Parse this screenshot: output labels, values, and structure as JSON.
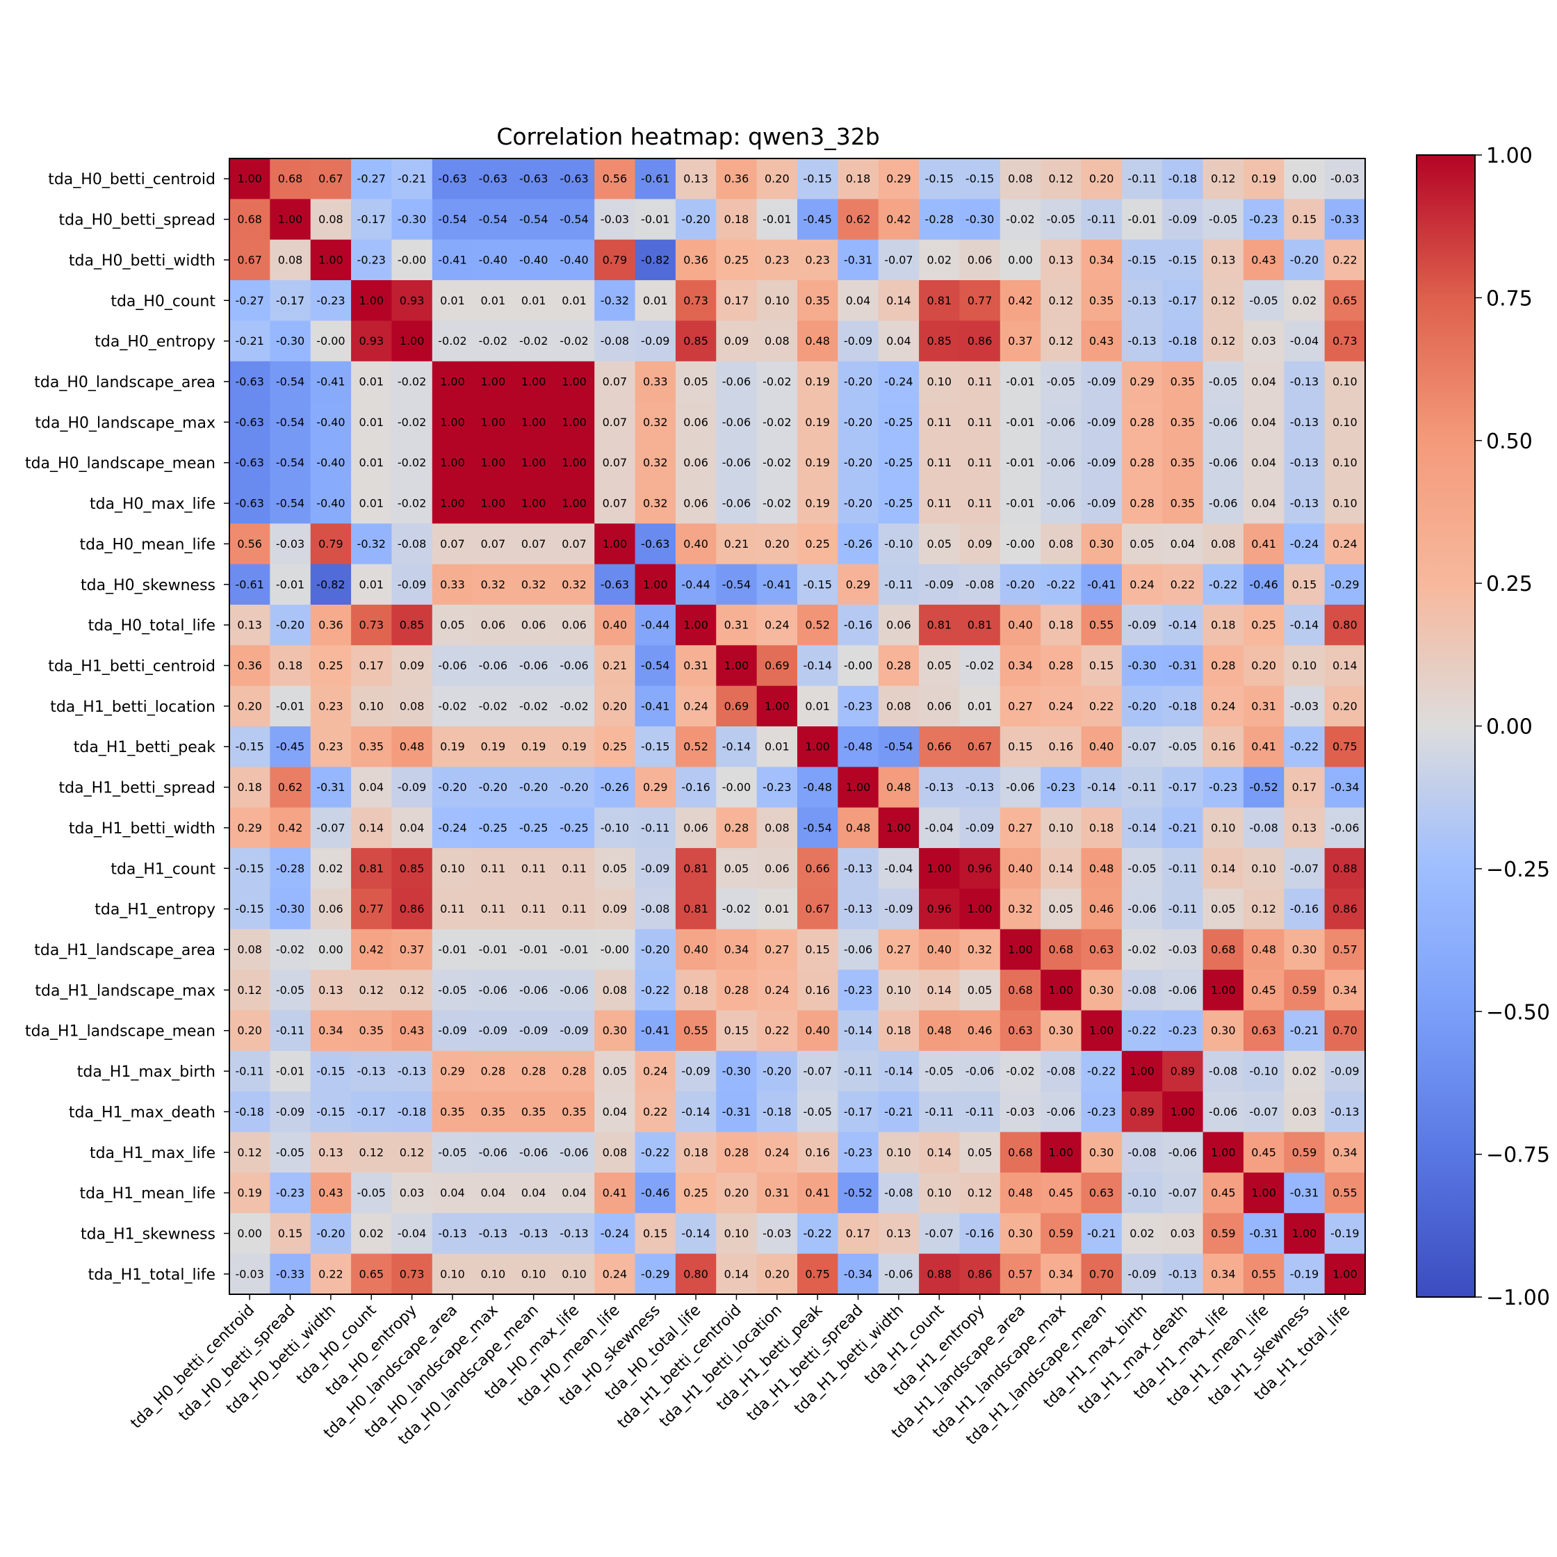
{
  "chart_data": {
    "type": "heatmap",
    "title": "Correlation heatmap: qwen3_32b",
    "labels": [
      "tda_H0_betti_centroid",
      "tda_H0_betti_spread",
      "tda_H0_betti_width",
      "tda_H0_count",
      "tda_H0_entropy",
      "tda_H0_landscape_area",
      "tda_H0_landscape_max",
      "tda_H0_landscape_mean",
      "tda_H0_max_life",
      "tda_H0_mean_life",
      "tda_H0_skewness",
      "tda_H0_total_life",
      "tda_H1_betti_centroid",
      "tda_H1_betti_location",
      "tda_H1_betti_peak",
      "tda_H1_betti_spread",
      "tda_H1_betti_width",
      "tda_H1_count",
      "tda_H1_entropy",
      "tda_H1_landscape_area",
      "tda_H1_landscape_max",
      "tda_H1_landscape_mean",
      "tda_H1_max_birth",
      "tda_H1_max_death",
      "tda_H1_max_life",
      "tda_H1_mean_life",
      "tda_H1_skewness",
      "tda_H1_total_life"
    ],
    "matrix": [
      [
        "1.00",
        "0.68",
        "0.67",
        "-0.27",
        "-0.21",
        "-0.63",
        "-0.63",
        "-0.63",
        "-0.63",
        "0.56",
        "-0.61",
        "0.13",
        "0.36",
        "0.20",
        "-0.15",
        "0.18",
        "0.29",
        "-0.15",
        "-0.15",
        "0.08",
        "0.12",
        "0.20",
        "-0.11",
        "-0.18",
        "0.12",
        "0.19",
        "0.00",
        "-0.03"
      ],
      [
        "0.68",
        "1.00",
        "0.08",
        "-0.17",
        "-0.30",
        "-0.54",
        "-0.54",
        "-0.54",
        "-0.54",
        "-0.03",
        "-0.01",
        "-0.20",
        "0.18",
        "-0.01",
        "-0.45",
        "0.62",
        "0.42",
        "-0.28",
        "-0.30",
        "-0.02",
        "-0.05",
        "-0.11",
        "-0.01",
        "-0.09",
        "-0.05",
        "-0.23",
        "0.15",
        "-0.33"
      ],
      [
        "0.67",
        "0.08",
        "1.00",
        "-0.23",
        "-0.00",
        "-0.41",
        "-0.40",
        "-0.40",
        "-0.40",
        "0.79",
        "-0.82",
        "0.36",
        "0.25",
        "0.23",
        "0.23",
        "-0.31",
        "-0.07",
        "0.02",
        "0.06",
        "0.00",
        "0.13",
        "0.34",
        "-0.15",
        "-0.15",
        "0.13",
        "0.43",
        "-0.20",
        "0.22"
      ],
      [
        "-0.27",
        "-0.17",
        "-0.23",
        "1.00",
        "0.93",
        "0.01",
        "0.01",
        "0.01",
        "0.01",
        "-0.32",
        "0.01",
        "0.73",
        "0.17",
        "0.10",
        "0.35",
        "0.04",
        "0.14",
        "0.81",
        "0.77",
        "0.42",
        "0.12",
        "0.35",
        "-0.13",
        "-0.17",
        "0.12",
        "-0.05",
        "0.02",
        "0.65"
      ],
      [
        "-0.21",
        "-0.30",
        "-0.00",
        "0.93",
        "1.00",
        "-0.02",
        "-0.02",
        "-0.02",
        "-0.02",
        "-0.08",
        "-0.09",
        "0.85",
        "0.09",
        "0.08",
        "0.48",
        "-0.09",
        "0.04",
        "0.85",
        "0.86",
        "0.37",
        "0.12",
        "0.43",
        "-0.13",
        "-0.18",
        "0.12",
        "0.03",
        "-0.04",
        "0.73"
      ],
      [
        "-0.63",
        "-0.54",
        "-0.41",
        "0.01",
        "-0.02",
        "1.00",
        "1.00",
        "1.00",
        "1.00",
        "0.07",
        "0.33",
        "0.05",
        "-0.06",
        "-0.02",
        "0.19",
        "-0.20",
        "-0.24",
        "0.10",
        "0.11",
        "-0.01",
        "-0.05",
        "-0.09",
        "0.29",
        "0.35",
        "-0.05",
        "0.04",
        "-0.13",
        "0.10"
      ],
      [
        "-0.63",
        "-0.54",
        "-0.40",
        "0.01",
        "-0.02",
        "1.00",
        "1.00",
        "1.00",
        "1.00",
        "0.07",
        "0.32",
        "0.06",
        "-0.06",
        "-0.02",
        "0.19",
        "-0.20",
        "-0.25",
        "0.11",
        "0.11",
        "-0.01",
        "-0.06",
        "-0.09",
        "0.28",
        "0.35",
        "-0.06",
        "0.04",
        "-0.13",
        "0.10"
      ],
      [
        "-0.63",
        "-0.54",
        "-0.40",
        "0.01",
        "-0.02",
        "1.00",
        "1.00",
        "1.00",
        "1.00",
        "0.07",
        "0.32",
        "0.06",
        "-0.06",
        "-0.02",
        "0.19",
        "-0.20",
        "-0.25",
        "0.11",
        "0.11",
        "-0.01",
        "-0.06",
        "-0.09",
        "0.28",
        "0.35",
        "-0.06",
        "0.04",
        "-0.13",
        "0.10"
      ],
      [
        "-0.63",
        "-0.54",
        "-0.40",
        "0.01",
        "-0.02",
        "1.00",
        "1.00",
        "1.00",
        "1.00",
        "0.07",
        "0.32",
        "0.06",
        "-0.06",
        "-0.02",
        "0.19",
        "-0.20",
        "-0.25",
        "0.11",
        "0.11",
        "-0.01",
        "-0.06",
        "-0.09",
        "0.28",
        "0.35",
        "-0.06",
        "0.04",
        "-0.13",
        "0.10"
      ],
      [
        "0.56",
        "-0.03",
        "0.79",
        "-0.32",
        "-0.08",
        "0.07",
        "0.07",
        "0.07",
        "0.07",
        "1.00",
        "-0.63",
        "0.40",
        "0.21",
        "0.20",
        "0.25",
        "-0.26",
        "-0.10",
        "0.05",
        "0.09",
        "-0.00",
        "0.08",
        "0.30",
        "0.05",
        "0.04",
        "0.08",
        "0.41",
        "-0.24",
        "0.24"
      ],
      [
        "-0.61",
        "-0.01",
        "-0.82",
        "0.01",
        "-0.09",
        "0.33",
        "0.32",
        "0.32",
        "0.32",
        "-0.63",
        "1.00",
        "-0.44",
        "-0.54",
        "-0.41",
        "-0.15",
        "0.29",
        "-0.11",
        "-0.09",
        "-0.08",
        "-0.20",
        "-0.22",
        "-0.41",
        "0.24",
        "0.22",
        "-0.22",
        "-0.46",
        "0.15",
        "-0.29"
      ],
      [
        "0.13",
        "-0.20",
        "0.36",
        "0.73",
        "0.85",
        "0.05",
        "0.06",
        "0.06",
        "0.06",
        "0.40",
        "-0.44",
        "1.00",
        "0.31",
        "0.24",
        "0.52",
        "-0.16",
        "0.06",
        "0.81",
        "0.81",
        "0.40",
        "0.18",
        "0.55",
        "-0.09",
        "-0.14",
        "0.18",
        "0.25",
        "-0.14",
        "0.80"
      ],
      [
        "0.36",
        "0.18",
        "0.25",
        "0.17",
        "0.09",
        "-0.06",
        "-0.06",
        "-0.06",
        "-0.06",
        "0.21",
        "-0.54",
        "0.31",
        "1.00",
        "0.69",
        "-0.14",
        "-0.00",
        "0.28",
        "0.05",
        "-0.02",
        "0.34",
        "0.28",
        "0.15",
        "-0.30",
        "-0.31",
        "0.28",
        "0.20",
        "0.10",
        "0.14"
      ],
      [
        "0.20",
        "-0.01",
        "0.23",
        "0.10",
        "0.08",
        "-0.02",
        "-0.02",
        "-0.02",
        "-0.02",
        "0.20",
        "-0.41",
        "0.24",
        "0.69",
        "1.00",
        "0.01",
        "-0.23",
        "0.08",
        "0.06",
        "0.01",
        "0.27",
        "0.24",
        "0.22",
        "-0.20",
        "-0.18",
        "0.24",
        "0.31",
        "-0.03",
        "0.20"
      ],
      [
        "-0.15",
        "-0.45",
        "0.23",
        "0.35",
        "0.48",
        "0.19",
        "0.19",
        "0.19",
        "0.19",
        "0.25",
        "-0.15",
        "0.52",
        "-0.14",
        "0.01",
        "1.00",
        "-0.48",
        "-0.54",
        "0.66",
        "0.67",
        "0.15",
        "0.16",
        "0.40",
        "-0.07",
        "-0.05",
        "0.16",
        "0.41",
        "-0.22",
        "0.75"
      ],
      [
        "0.18",
        "0.62",
        "-0.31",
        "0.04",
        "-0.09",
        "-0.20",
        "-0.20",
        "-0.20",
        "-0.20",
        "-0.26",
        "0.29",
        "-0.16",
        "-0.00",
        "-0.23",
        "-0.48",
        "1.00",
        "0.48",
        "-0.13",
        "-0.13",
        "-0.06",
        "-0.23",
        "-0.14",
        "-0.11",
        "-0.17",
        "-0.23",
        "-0.52",
        "0.17",
        "-0.34"
      ],
      [
        "0.29",
        "0.42",
        "-0.07",
        "0.14",
        "0.04",
        "-0.24",
        "-0.25",
        "-0.25",
        "-0.25",
        "-0.10",
        "-0.11",
        "0.06",
        "0.28",
        "0.08",
        "-0.54",
        "0.48",
        "1.00",
        "-0.04",
        "-0.09",
        "0.27",
        "0.10",
        "0.18",
        "-0.14",
        "-0.21",
        "0.10",
        "-0.08",
        "0.13",
        "-0.06"
      ],
      [
        "-0.15",
        "-0.28",
        "0.02",
        "0.81",
        "0.85",
        "0.10",
        "0.11",
        "0.11",
        "0.11",
        "0.05",
        "-0.09",
        "0.81",
        "0.05",
        "0.06",
        "0.66",
        "-0.13",
        "-0.04",
        "1.00",
        "0.96",
        "0.40",
        "0.14",
        "0.48",
        "-0.05",
        "-0.11",
        "0.14",
        "0.10",
        "-0.07",
        "0.88"
      ],
      [
        "-0.15",
        "-0.30",
        "0.06",
        "0.77",
        "0.86",
        "0.11",
        "0.11",
        "0.11",
        "0.11",
        "0.09",
        "-0.08",
        "0.81",
        "-0.02",
        "0.01",
        "0.67",
        "-0.13",
        "-0.09",
        "0.96",
        "1.00",
        "0.32",
        "0.05",
        "0.46",
        "-0.06",
        "-0.11",
        "0.05",
        "0.12",
        "-0.16",
        "0.86"
      ],
      [
        "0.08",
        "-0.02",
        "0.00",
        "0.42",
        "0.37",
        "-0.01",
        "-0.01",
        "-0.01",
        "-0.01",
        "-0.00",
        "-0.20",
        "0.40",
        "0.34",
        "0.27",
        "0.15",
        "-0.06",
        "0.27",
        "0.40",
        "0.32",
        "1.00",
        "0.68",
        "0.63",
        "-0.02",
        "-0.03",
        "0.68",
        "0.48",
        "0.30",
        "0.57"
      ],
      [
        "0.12",
        "-0.05",
        "0.13",
        "0.12",
        "0.12",
        "-0.05",
        "-0.06",
        "-0.06",
        "-0.06",
        "0.08",
        "-0.22",
        "0.18",
        "0.28",
        "0.24",
        "0.16",
        "-0.23",
        "0.10",
        "0.14",
        "0.05",
        "0.68",
        "1.00",
        "0.30",
        "-0.08",
        "-0.06",
        "1.00",
        "0.45",
        "0.59",
        "0.34"
      ],
      [
        "0.20",
        "-0.11",
        "0.34",
        "0.35",
        "0.43",
        "-0.09",
        "-0.09",
        "-0.09",
        "-0.09",
        "0.30",
        "-0.41",
        "0.55",
        "0.15",
        "0.22",
        "0.40",
        "-0.14",
        "0.18",
        "0.48",
        "0.46",
        "0.63",
        "0.30",
        "1.00",
        "-0.22",
        "-0.23",
        "0.30",
        "0.63",
        "-0.21",
        "0.70"
      ],
      [
        "-0.11",
        "-0.01",
        "-0.15",
        "-0.13",
        "-0.13",
        "0.29",
        "0.28",
        "0.28",
        "0.28",
        "0.05",
        "0.24",
        "-0.09",
        "-0.30",
        "-0.20",
        "-0.07",
        "-0.11",
        "-0.14",
        "-0.05",
        "-0.06",
        "-0.02",
        "-0.08",
        "-0.22",
        "1.00",
        "0.89",
        "-0.08",
        "-0.10",
        "0.02",
        "-0.09"
      ],
      [
        "-0.18",
        "-0.09",
        "-0.15",
        "-0.17",
        "-0.18",
        "0.35",
        "0.35",
        "0.35",
        "0.35",
        "0.04",
        "0.22",
        "-0.14",
        "-0.31",
        "-0.18",
        "-0.05",
        "-0.17",
        "-0.21",
        "-0.11",
        "-0.11",
        "-0.03",
        "-0.06",
        "-0.23",
        "0.89",
        "1.00",
        "-0.06",
        "-0.07",
        "0.03",
        "-0.13"
      ],
      [
        "0.12",
        "-0.05",
        "0.13",
        "0.12",
        "0.12",
        "-0.05",
        "-0.06",
        "-0.06",
        "-0.06",
        "0.08",
        "-0.22",
        "0.18",
        "0.28",
        "0.24",
        "0.16",
        "-0.23",
        "0.10",
        "0.14",
        "0.05",
        "0.68",
        "1.00",
        "0.30",
        "-0.08",
        "-0.06",
        "1.00",
        "0.45",
        "0.59",
        "0.34"
      ],
      [
        "0.19",
        "-0.23",
        "0.43",
        "-0.05",
        "0.03",
        "0.04",
        "0.04",
        "0.04",
        "0.04",
        "0.41",
        "-0.46",
        "0.25",
        "0.20",
        "0.31",
        "0.41",
        "-0.52",
        "-0.08",
        "0.10",
        "0.12",
        "0.48",
        "0.45",
        "0.63",
        "-0.10",
        "-0.07",
        "0.45",
        "1.00",
        "-0.31",
        "0.55"
      ],
      [
        "0.00",
        "0.15",
        "-0.20",
        "0.02",
        "-0.04",
        "-0.13",
        "-0.13",
        "-0.13",
        "-0.13",
        "-0.24",
        "0.15",
        "-0.14",
        "0.10",
        "-0.03",
        "-0.22",
        "0.17",
        "0.13",
        "-0.07",
        "-0.16",
        "0.30",
        "0.59",
        "-0.21",
        "0.02",
        "0.03",
        "0.59",
        "-0.31",
        "1.00",
        "-0.19"
      ],
      [
        "-0.03",
        "-0.33",
        "0.22",
        "0.65",
        "0.73",
        "0.10",
        "0.10",
        "0.10",
        "0.10",
        "0.24",
        "-0.29",
        "0.80",
        "0.14",
        "0.20",
        "0.75",
        "-0.34",
        "-0.06",
        "0.88",
        "0.86",
        "0.57",
        "0.34",
        "0.70",
        "-0.09",
        "-0.13",
        "0.34",
        "0.55",
        "-0.19",
        "1.00"
      ]
    ],
    "colorbar": {
      "vmin": -1.0,
      "vmax": 1.0,
      "ticks": [
        "1.00",
        "0.75",
        "0.50",
        "0.25",
        "0.00",
        "−0.25",
        "−0.50",
        "−0.75",
        "−1.00"
      ],
      "colormap": "coolwarm"
    }
  }
}
